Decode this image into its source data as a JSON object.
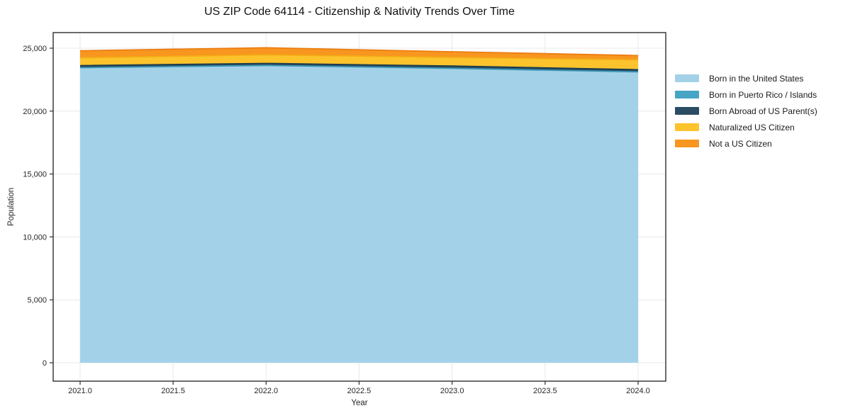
{
  "chart_data": {
    "type": "area",
    "stacked": true,
    "title": "US ZIP Code 64114 - Citizenship & Nativity Trends Over Time",
    "xlabel": "Year",
    "ylabel": "Population",
    "x": [
      2021,
      2022,
      2023,
      2024
    ],
    "series": [
      {
        "name": "Born in the United States",
        "color": "#a3d2e8",
        "edge_color": "#8ec5de",
        "values": [
          23430,
          23600,
          23370,
          23090
        ]
      },
      {
        "name": "Born in Puerto Rico / Islands",
        "color": "#46a5c5",
        "edge_color": "#3b93b3",
        "values": [
          25,
          30,
          30,
          30
        ]
      },
      {
        "name": "Born Abroad of US Parent(s)",
        "color": "#2b4d63",
        "edge_color": "#1d3d4d",
        "values": [
          160,
          160,
          180,
          170
        ]
      },
      {
        "name": "Naturalized US Citizen",
        "color": "#fcc32d",
        "edge_color": "#f3ad16",
        "values": [
          620,
          680,
          690,
          785
        ]
      },
      {
        "name": "Not a US Citizen",
        "color": "#f8961f",
        "edge_color": "#ec7d12",
        "values": [
          560,
          565,
          450,
          340
        ]
      }
    ],
    "xticks": {
      "values": [
        2021.0,
        2021.5,
        2022.0,
        2022.5,
        2023.0,
        2023.5,
        2024.0
      ],
      "labels": [
        "2021.0",
        "2021.5",
        "2022.0",
        "2022.5",
        "2023.0",
        "2023.5",
        "2024.0"
      ]
    },
    "yticks": {
      "values": [
        0,
        5000,
        10000,
        15000,
        20000,
        25000
      ],
      "labels": [
        "0",
        "5,000",
        "10,000",
        "15,000",
        "20,000",
        "25,000"
      ]
    },
    "xlim": [
      2020.86,
      2024.15
    ],
    "ylim": [
      -1460,
      26240
    ],
    "grid": true,
    "grid_color": "#e8e8e8",
    "frame_color": "#2e2e2e",
    "tick_text_color": "#262626",
    "background": "#ffffff",
    "legend_position": "right"
  }
}
